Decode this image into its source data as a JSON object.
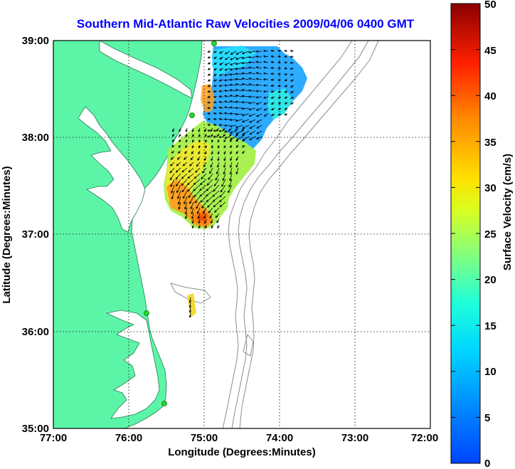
{
  "title": "Southern Mid-Atlantic Raw Velocities 2009/04/06 0400 GMT",
  "x_axis": {
    "label": "Longitude (Degrees:Minutes)",
    "ticks": [
      "77:00",
      "76:00",
      "75:00",
      "74:00",
      "73:00",
      "72:00"
    ]
  },
  "y_axis": {
    "label": "Latitude (Degrees:Minutes)",
    "ticks": [
      "39:00",
      "38:00",
      "37:00",
      "36:00",
      "35:00"
    ]
  },
  "colorbar": {
    "label": "Surface Velocity (cm/s)",
    "ticks": [
      "50",
      "45",
      "40",
      "35",
      "30",
      "25",
      "20",
      "15",
      "10",
      "5",
      "0"
    ],
    "min": 0,
    "max": 50,
    "colormap": "jet"
  },
  "map": {
    "lon_range": [
      -77,
      -72
    ],
    "lat_range": [
      35,
      39
    ],
    "land_color": "#5cf5a8",
    "water_color": "#ffffff",
    "bathymetry_color": "#8c8c8c",
    "grid": "dotted",
    "station_marker_color": "#22dd22"
  }
}
